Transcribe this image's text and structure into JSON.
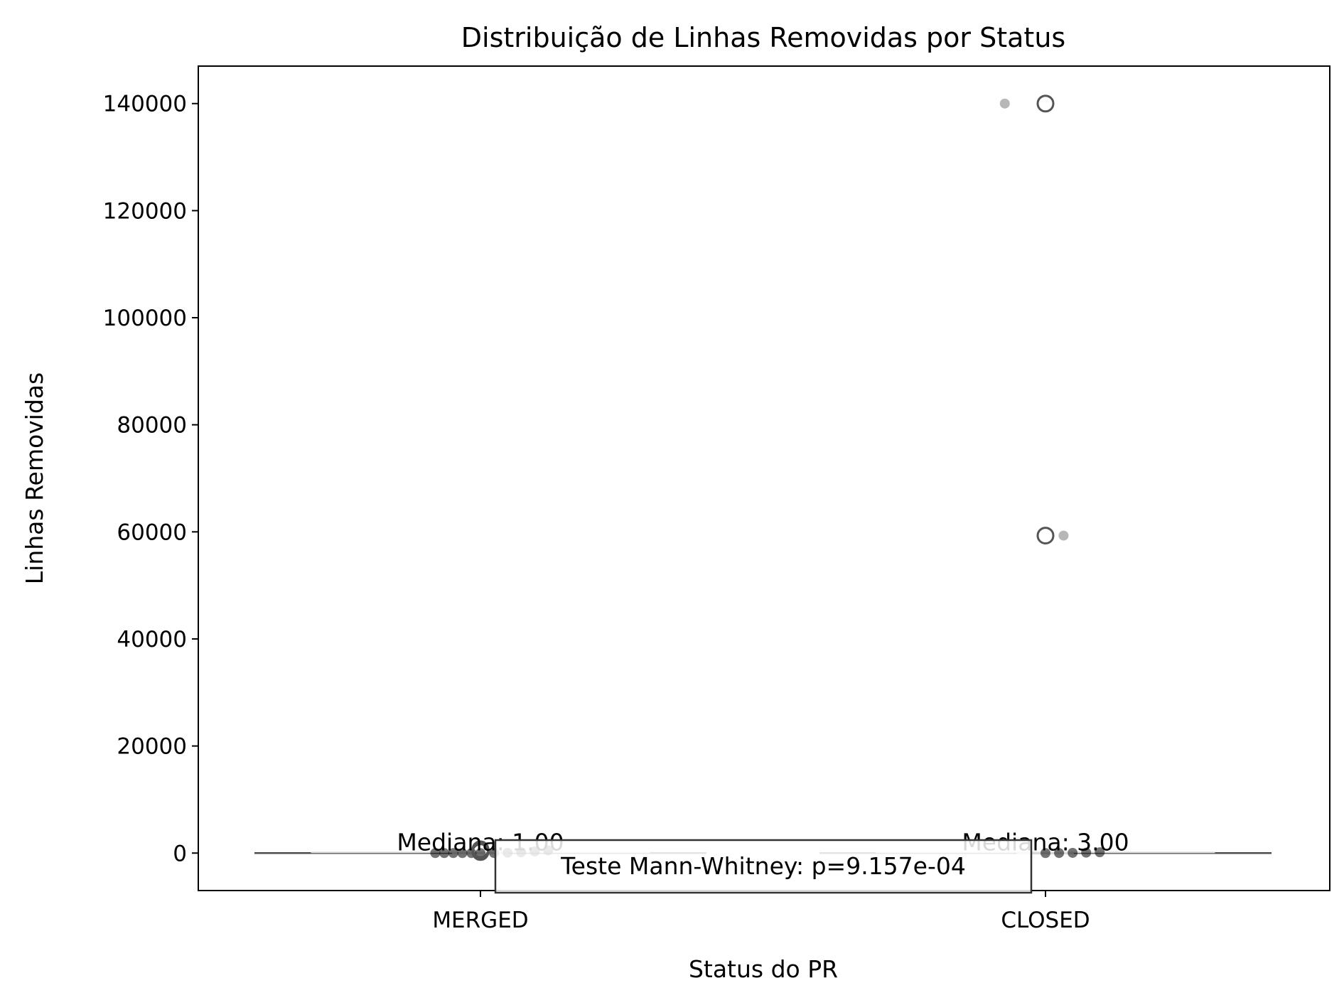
{
  "chart_data": {
    "type": "box",
    "title": "Distribuição de Linhas Removidas por Status",
    "xlabel": "Status do PR",
    "ylabel": "Linhas Removidas",
    "categories": [
      "MERGED",
      "CLOSED"
    ],
    "ylim": [
      -7000,
      147000
    ],
    "yticks": [
      0,
      20000,
      40000,
      60000,
      80000,
      100000,
      120000,
      140000
    ],
    "ytick_labels": [
      "0",
      "20000",
      "40000",
      "60000",
      "80000",
      "100000",
      "120000",
      "140000"
    ],
    "grid": false,
    "series": [
      {
        "category": "MERGED",
        "median": 1,
        "median_label": "Mediana: 1.00",
        "whisker_range": [
          0,
          5
        ],
        "outliers": [
          200,
          300,
          400,
          500,
          700
        ],
        "points": [
          {
            "offset": -0.1,
            "value": 0
          },
          {
            "offset": -0.08,
            "value": 0
          },
          {
            "offset": -0.06,
            "value": 1
          },
          {
            "offset": -0.04,
            "value": 1
          },
          {
            "offset": -0.02,
            "value": 2
          },
          {
            "offset": 0.0,
            "value": 3
          },
          {
            "offset": 0.03,
            "value": 5
          },
          {
            "offset": 0.06,
            "value": 60
          },
          {
            "offset": 0.09,
            "value": 150
          },
          {
            "offset": 0.12,
            "value": 300
          },
          {
            "offset": 0.15,
            "value": 500
          }
        ]
      },
      {
        "category": "CLOSED",
        "median": 3,
        "median_label": "Mediana: 3.00",
        "whisker_range": [
          0,
          20
        ],
        "outliers": [
          59300,
          140000
        ],
        "points": [
          {
            "offset": -0.09,
            "value": 140000
          },
          {
            "offset": 0.04,
            "value": 59300
          },
          {
            "offset": 0.0,
            "value": 0
          },
          {
            "offset": 0.03,
            "value": 10
          },
          {
            "offset": 0.06,
            "value": 40
          },
          {
            "offset": 0.09,
            "value": 80
          },
          {
            "offset": 0.12,
            "value": 150
          }
        ]
      }
    ],
    "annotation": "Teste Mann-Whitney: p=9.157e-04",
    "colors": {
      "box_edge": "#4d4d4d",
      "strip_merged": "#000000",
      "strip_closed": "#aaaaaa",
      "outlier_edge": "#555555"
    }
  }
}
